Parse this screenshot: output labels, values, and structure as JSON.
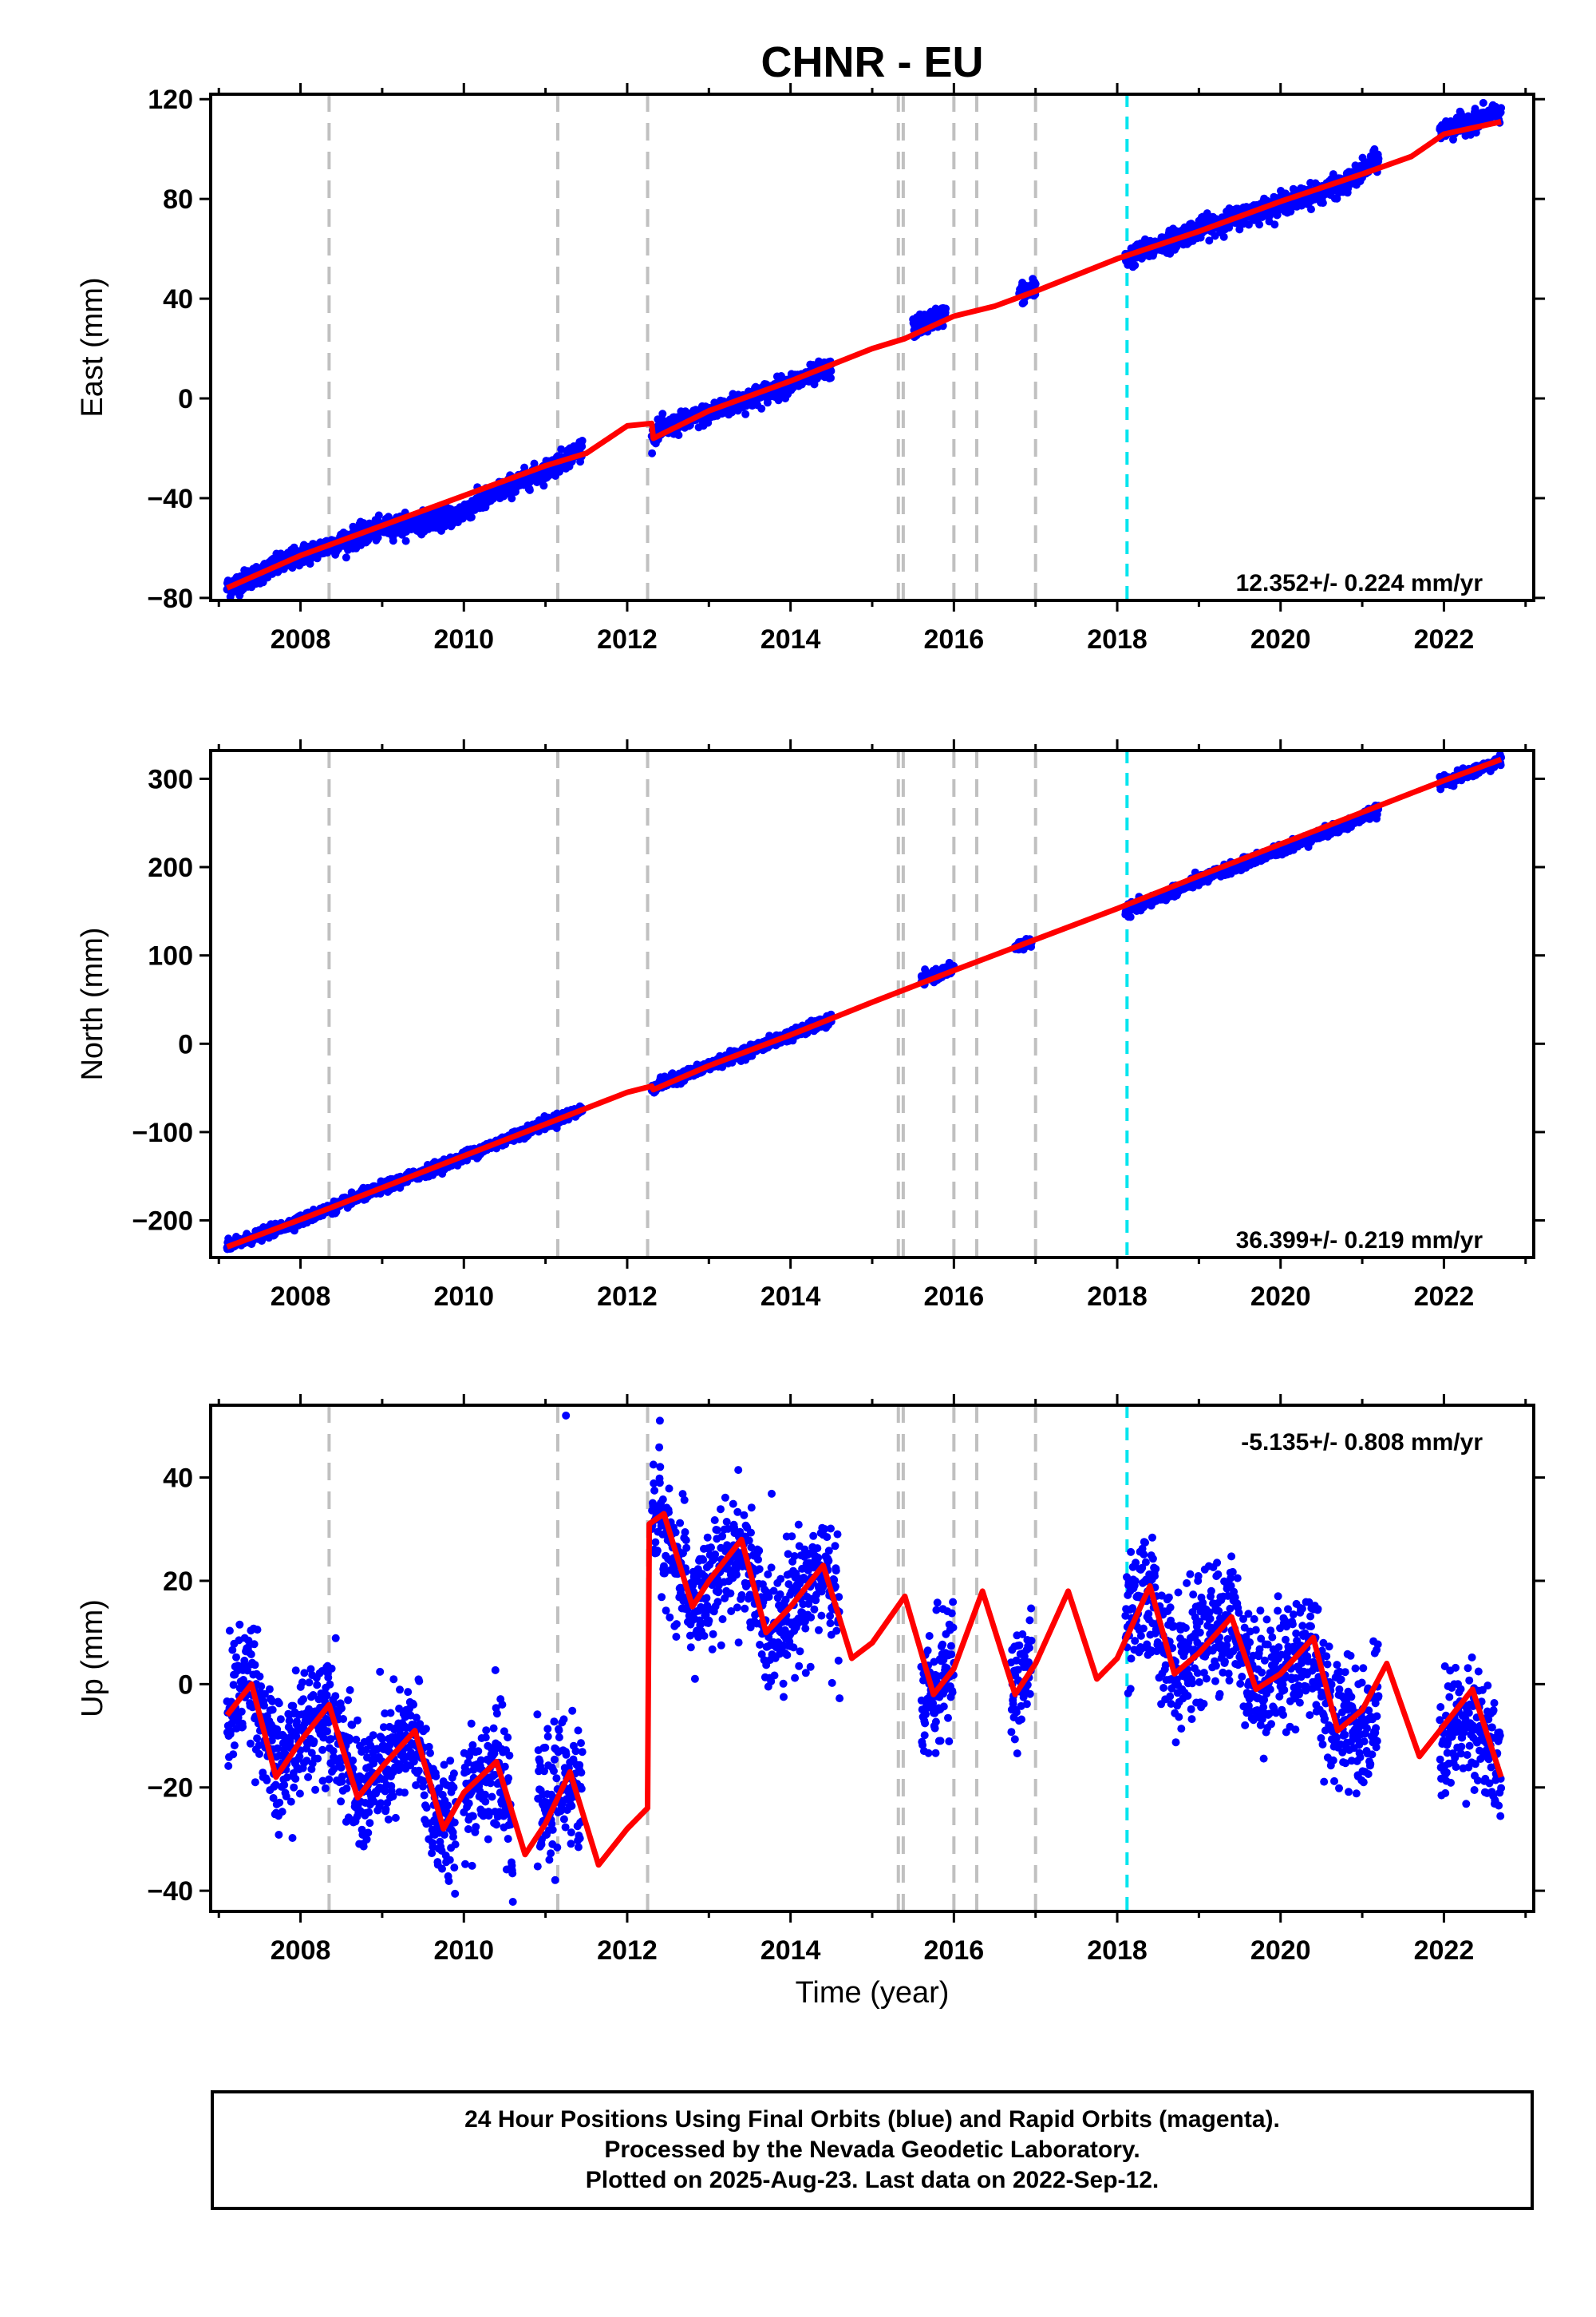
{
  "chart_data": [
    {
      "type": "scatter",
      "title": "CHNR - EU",
      "ylabel": "East (mm)",
      "xlim": [
        2006.9,
        2023.1
      ],
      "ylim": [
        -81,
        122
      ],
      "xticks": [
        2008,
        2010,
        2012,
        2014,
        2016,
        2018,
        2020,
        2022
      ],
      "yticks": [
        -80,
        -40,
        0,
        40,
        80,
        120
      ],
      "ytick_labels": [
        "−80",
        "−40",
        "0",
        "40",
        "80",
        "120"
      ],
      "rate_text": "12.352+/- 0.224 mm/yr",
      "noise": 2,
      "data_segments": [
        {
          "x": [
            2007.1,
            2008.0,
            2009.0,
            2009.9,
            2010.5,
            2011.0,
            2011.45
          ],
          "y": [
            -76,
            -63,
            -52,
            -47,
            -36,
            -29,
            -20
          ]
        },
        {
          "x": [
            2012.3,
            2013.0,
            2013.5,
            2014.0,
            2014.5
          ],
          "y": [
            -14,
            -6,
            0,
            6,
            12
          ]
        },
        {
          "x": [
            2015.5,
            2015.9
          ],
          "y": [
            28,
            34
          ]
        },
        {
          "x": [
            2016.8,
            2017.0
          ],
          "y": [
            42,
            44
          ]
        },
        {
          "x": [
            2018.1,
            2019.0,
            2020.0,
            2020.8,
            2021.2
          ],
          "y": [
            56,
            68,
            78,
            86,
            96
          ]
        },
        {
          "x": [
            2021.95,
            2022.7
          ],
          "y": [
            107,
            115
          ]
        }
      ],
      "model_line": {
        "x": [
          2007.1,
          2008.0,
          2009.0,
          2010.0,
          2011.0,
          2011.5,
          2012.0,
          2012.3,
          2012.32,
          2013.0,
          2014.0,
          2015.0,
          2015.4,
          2016.0,
          2016.5,
          2017.0,
          2018.0,
          2019.0,
          2020.0,
          2021.0,
          2021.6,
          2022.0,
          2022.7
        ],
        "y": [
          -76,
          -63,
          -51,
          -39,
          -27,
          -22,
          -11,
          -10,
          -16,
          -5,
          7,
          20,
          24,
          33,
          37,
          43,
          56,
          67,
          79,
          90,
          97,
          106,
          111
        ]
      },
      "breaks_gray": [
        2008.35,
        2011.15,
        2012.25,
        2015.32,
        2015.38,
        2016.0,
        2016.28,
        2017.0
      ],
      "break_cyan": 2018.12
    },
    {
      "type": "scatter",
      "ylabel": "North (mm)",
      "xlim": [
        2006.9,
        2023.1
      ],
      "ylim": [
        -242,
        332
      ],
      "xticks": [
        2008,
        2010,
        2012,
        2014,
        2016,
        2018,
        2020,
        2022
      ],
      "yticks": [
        -200,
        -100,
        0,
        100,
        200,
        300
      ],
      "ytick_labels": [
        "−200",
        "−100",
        "0",
        "100",
        "200",
        "300"
      ],
      "rate_text": "36.399+/- 0.219 mm/yr",
      "noise": 3,
      "data_segments": [
        {
          "x": [
            2007.1,
            2008.0,
            2009.0,
            2010.0,
            2011.0,
            2011.45
          ],
          "y": [
            -230,
            -200,
            -163,
            -128,
            -90,
            -75
          ]
        },
        {
          "x": [
            2012.3,
            2013.0,
            2014.0,
            2014.5
          ],
          "y": [
            -50,
            -25,
            10,
            27
          ]
        },
        {
          "x": [
            2015.6,
            2016.0
          ],
          "y": [
            72,
            85
          ]
        },
        {
          "x": [
            2016.75,
            2016.95
          ],
          "y": [
            110,
            115
          ]
        },
        {
          "x": [
            2018.1,
            2019.0,
            2020.0,
            2020.8,
            2021.2
          ],
          "y": [
            150,
            185,
            220,
            248,
            265
          ]
        },
        {
          "x": [
            2021.95,
            2022.7
          ],
          "y": [
            295,
            320
          ]
        }
      ],
      "model_line": {
        "x": [
          2007.1,
          2008.0,
          2009.0,
          2010.0,
          2011.0,
          2012.0,
          2012.3,
          2012.32,
          2013.0,
          2014.0,
          2015.0,
          2016.0,
          2017.0,
          2018.0,
          2019.0,
          2020.0,
          2021.0,
          2022.0,
          2022.7
        ],
        "y": [
          -230,
          -199,
          -163,
          -127,
          -91,
          -55,
          -48,
          -52,
          -25,
          10,
          47,
          83,
          118,
          153,
          190,
          226,
          262,
          298,
          322
        ]
      },
      "breaks_gray": [
        2008.35,
        2011.15,
        2012.25,
        2015.32,
        2015.38,
        2016.0,
        2016.28,
        2017.0
      ],
      "break_cyan": 2018.12
    },
    {
      "type": "scatter",
      "xlabel": "Time (year)",
      "ylabel": "Up (mm)",
      "xlim": [
        2006.9,
        2023.1
      ],
      "ylim": [
        -44,
        54
      ],
      "xticks": [
        2008,
        2010,
        2012,
        2014,
        2016,
        2018,
        2020,
        2022
      ],
      "yticks": [
        -40,
        -20,
        0,
        20,
        40
      ],
      "ytick_labels": [
        "−40",
        "−20",
        "0",
        "20",
        "40"
      ],
      "rate_text": "-5.135+/- 0.808 mm/yr",
      "noise": 6,
      "data_segments": [
        {
          "x": [
            2007.1,
            2007.4,
            2007.7,
            2008.0,
            2008.35,
            2008.7,
            2009.0,
            2009.4,
            2009.7,
            2009.9
          ],
          "y": [
            -5,
            3,
            -18,
            -10,
            -3,
            -22,
            -17,
            -10,
            -27,
            -28
          ]
        },
        {
          "x": [
            2010.0,
            2010.4,
            2010.6
          ],
          "y": [
            -20,
            -15,
            -28
          ]
        },
        {
          "x": [
            2010.9,
            2011.3,
            2011.45
          ],
          "y": [
            -25,
            -18,
            -22
          ]
        },
        {
          "x": [
            2012.3,
            2012.5,
            2012.8,
            2013.0,
            2013.4,
            2013.7,
            2014.0,
            2014.4,
            2014.6
          ],
          "y": [
            35,
            28,
            15,
            18,
            27,
            10,
            15,
            23,
            12
          ]
        },
        {
          "x": [
            2015.6,
            2015.75,
            2016.0
          ],
          "y": [
            -3,
            -2,
            5
          ]
        },
        {
          "x": [
            2016.7,
            2016.95
          ],
          "y": [
            -2,
            5
          ]
        },
        {
          "x": [
            2018.1,
            2018.4,
            2018.7,
            2019.0,
            2019.4,
            2019.7,
            2020.0,
            2020.4,
            2020.6,
            2020.8,
            2021.0,
            2021.2
          ],
          "y": [
            10,
            18,
            2,
            8,
            13,
            0,
            3,
            8,
            -8,
            -5,
            -10,
            -3
          ]
        },
        {
          "x": [
            2021.95,
            2022.3,
            2022.7
          ],
          "y": [
            -12,
            -5,
            -18
          ]
        }
      ],
      "model_line": {
        "x": [
          2007.1,
          2007.4,
          2007.7,
          2008.0,
          2008.35,
          2008.7,
          2009.0,
          2009.4,
          2009.75,
          2010.0,
          2010.4,
          2010.75,
          2011.0,
          2011.3,
          2011.65,
          2012.0,
          2012.25,
          2012.27,
          2012.45,
          2012.8,
          2013.0,
          2013.4,
          2013.7,
          2014.0,
          2014.4,
          2014.75,
          2015.0,
          2015.4,
          2015.75,
          2016.0,
          2016.35,
          2016.75,
          2017.0,
          2017.4,
          2017.75,
          2018.0,
          2018.4,
          2018.7,
          2019.0,
          2019.4,
          2019.7,
          2020.0,
          2020.4,
          2020.7,
          2021.0,
          2021.3,
          2021.7,
          2022.0,
          2022.35,
          2022.7
        ],
        "y": [
          -6,
          0,
          -18,
          -11,
          -4,
          -22,
          -16,
          -9,
          -28,
          -21,
          -15,
          -33,
          -27,
          -17,
          -35,
          -28,
          -24,
          31,
          33,
          15,
          20,
          28,
          10,
          15,
          23,
          5,
          8,
          17,
          -2,
          3,
          18,
          -2,
          4,
          18,
          1,
          5,
          19,
          2,
          6,
          13,
          -1,
          2,
          9,
          -9,
          -5,
          4,
          -14,
          -8,
          -1,
          -18
        ]
      },
      "outliers": {
        "x": [
          2011.25,
          2012.4
        ],
        "y": [
          52,
          51
        ]
      },
      "breaks_gray": [
        2008.35,
        2011.15,
        2012.25,
        2015.32,
        2015.38,
        2016.0,
        2016.28,
        2017.0
      ],
      "break_cyan": 2018.12
    }
  ],
  "footer": {
    "line1": "24 Hour Positions Using Final Orbits (blue) and Rapid Orbits (magenta).",
    "line2": "Processed by the Nevada Geodetic Laboratory.",
    "line3": "Plotted on 2025-Aug-23. Last data on 2022-Sep-12."
  },
  "colors": {
    "points": "#0000ff",
    "model": "#ff0000",
    "break_gray": "#c0c0c0",
    "break_cyan": "#00e5ee"
  }
}
